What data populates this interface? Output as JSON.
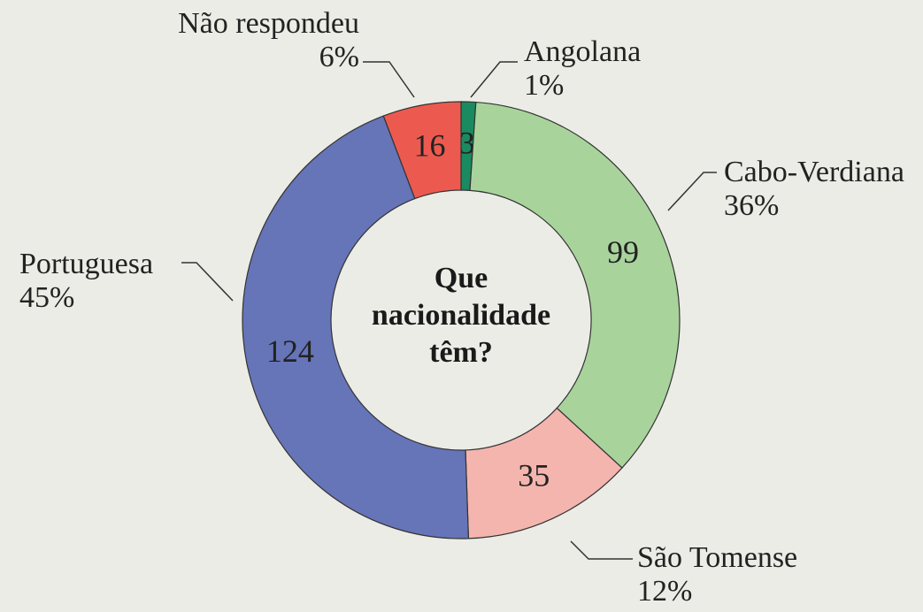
{
  "chart_data": {
    "type": "donut",
    "title": "Que nacionalidade têm?",
    "categories": [
      "Angolana",
      "Cabo-Verdiana",
      "São Tomense",
      "Portuguesa",
      "Não respondeu"
    ],
    "values": [
      3,
      99,
      35,
      124,
      16
    ],
    "shares": [
      {
        "value": 1,
        "label": "1%"
      },
      {
        "value": 36,
        "label": "36%"
      },
      {
        "value": 12,
        "label": "12%"
      },
      {
        "value": 45,
        "label": "45%"
      },
      {
        "value": 6,
        "label": "6%"
      }
    ],
    "colors": [
      "#1a8a60",
      "#a8d49c",
      "#f4b5ae",
      "#6674b8",
      "#ec5a4f"
    ]
  }
}
